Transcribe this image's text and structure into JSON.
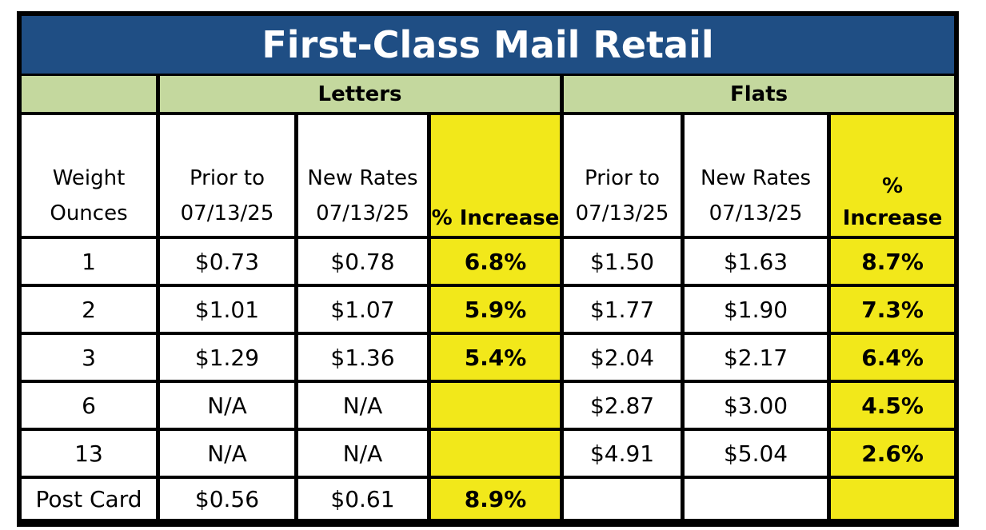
{
  "title": "First-Class Mail  Retail",
  "groups": {
    "blank": "",
    "letters": "Letters",
    "flats": "Flats"
  },
  "headers": {
    "weight_line1": "Weight",
    "weight_line2": "Ounces",
    "letters_prior_line1": "Prior to",
    "letters_prior_line2": "07/13/25",
    "letters_new_line1": "New Rates",
    "letters_new_line2": "07/13/25",
    "letters_pct": "% Increase",
    "flats_prior_line1": "Prior to",
    "flats_prior_line2": "07/13/25",
    "flats_new_line1": "New Rates",
    "flats_new_line2": "07/13/25",
    "flats_pct": "% Increase"
  },
  "rows": [
    {
      "weight": "1",
      "l_prior": "$0.73",
      "l_new": "$0.78",
      "l_pct": "6.8%",
      "f_prior": "$1.50",
      "f_new": "$1.63",
      "f_pct": "8.7%"
    },
    {
      "weight": "2",
      "l_prior": "$1.01",
      "l_new": "$1.07",
      "l_pct": "5.9%",
      "f_prior": "$1.77",
      "f_new": "$1.90",
      "f_pct": "7.3%"
    },
    {
      "weight": "3",
      "l_prior": "$1.29",
      "l_new": "$1.36",
      "l_pct": "5.4%",
      "f_prior": "$2.04",
      "f_new": "$2.17",
      "f_pct": "6.4%"
    },
    {
      "weight": "6",
      "l_prior": "N/A",
      "l_new": "N/A",
      "l_pct": "",
      "f_prior": "$2.87",
      "f_new": "$3.00",
      "f_pct": "4.5%"
    },
    {
      "weight": "13",
      "l_prior": "N/A",
      "l_new": "N/A",
      "l_pct": "",
      "f_prior": "$4.91",
      "f_new": "$5.04",
      "f_pct": "2.6%"
    },
    {
      "weight": "Post Card",
      "l_prior": "$0.56",
      "l_new": "$0.61",
      "l_pct": "8.9%",
      "f_prior": "",
      "f_new": "",
      "f_pct": ""
    }
  ],
  "colors": {
    "title_bg": "#1f4e84",
    "group_bg": "#c4d89e",
    "highlight": "#f2e81a",
    "border": "#000000"
  }
}
